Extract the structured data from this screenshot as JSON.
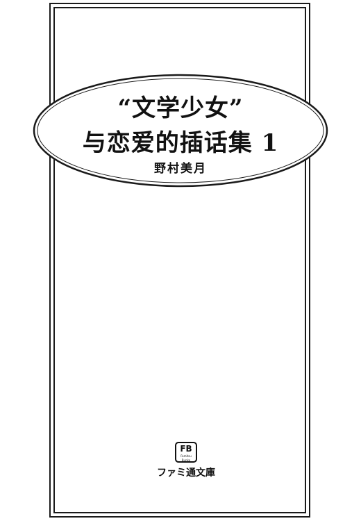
{
  "title": {
    "line1": "“文学少女”",
    "line2": "与恋爱的插话集 1"
  },
  "author": "野村美月",
  "publisher": {
    "logo_text": "FB",
    "logo_subtext": "Famitsu Bunko",
    "name": "ファミ通文庫"
  }
}
